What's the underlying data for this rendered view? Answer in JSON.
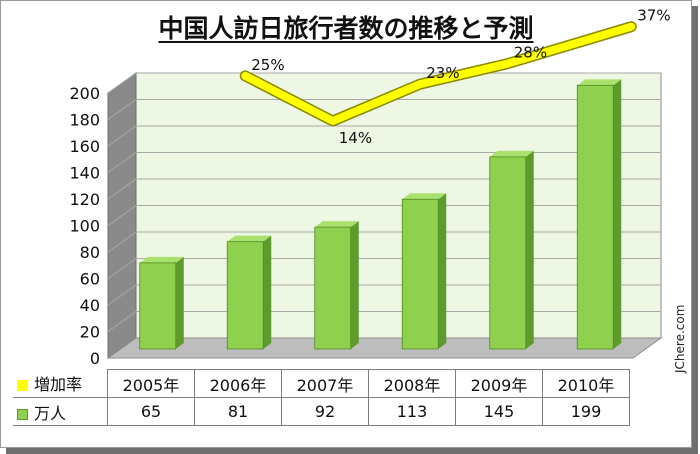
{
  "title": "中国人訪日旅行者数の推移と予測",
  "credit": "JChere.com",
  "colors": {
    "bar": "#8fd14f",
    "bar_side": "#5e9a2c",
    "line": "#ffff00",
    "plot_bg": "#eef6e4"
  },
  "table": {
    "years": [
      "2005年",
      "2006年",
      "2007年",
      "2008年",
      "2009年",
      "2010年"
    ],
    "rows": [
      {
        "legend": "増加率",
        "values": [
          "",
          "",
          "",
          "",
          "",
          ""
        ]
      },
      {
        "legend": "万人",
        "values": [
          "65",
          "81",
          "92",
          "113",
          "145",
          "199"
        ]
      }
    ]
  },
  "chart_data": {
    "type": "bar",
    "title": "中国人訪日旅行者数の推移と予測",
    "categories": [
      "2005年",
      "2006年",
      "2007年",
      "2008年",
      "2009年",
      "2010年"
    ],
    "series": [
      {
        "name": "万人",
        "values": [
          65,
          81,
          92,
          113,
          145,
          199
        ]
      },
      {
        "name": "増加率",
        "type": "line",
        "values": [
          null,
          25,
          14,
          23,
          28,
          37
        ],
        "labels": [
          "",
          "25%",
          "14%",
          "23%",
          "28%",
          "37%"
        ]
      }
    ],
    "yticks": [
      0,
      20,
      40,
      60,
      80,
      100,
      120,
      140,
      160,
      180,
      200
    ],
    "ylim": [
      0,
      200
    ],
    "grid": true,
    "legend": "table"
  }
}
